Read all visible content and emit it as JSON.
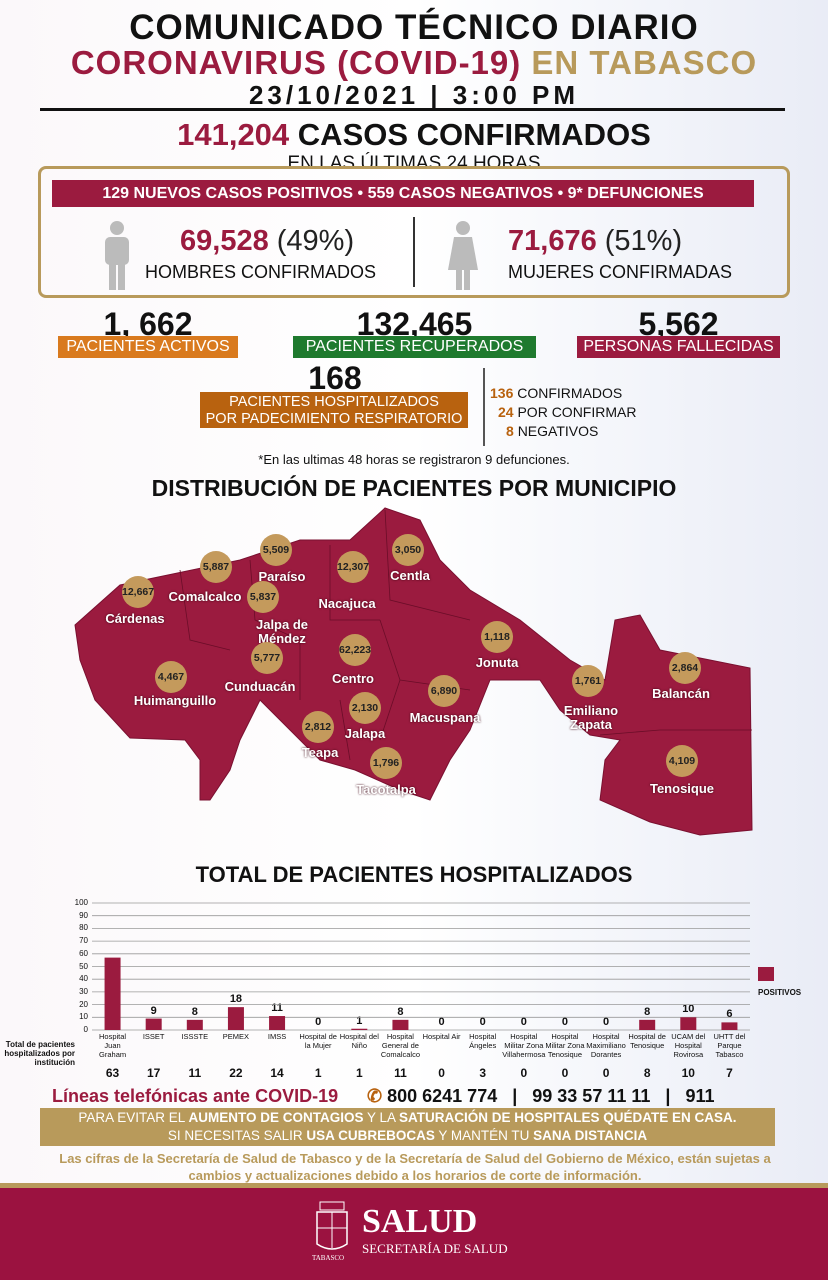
{
  "header": {
    "title": "COMUNICADO TÉCNICO DIARIO",
    "subtitle_red": "CORONAVIRUS (COVID-19)",
    "subtitle_gold": "EN TABASCO",
    "datetime": "23/10/2021 | 3:00 PM"
  },
  "confirmed": {
    "total": "141,204",
    "label": "CASOS CONFIRMADOS",
    "period": "EN LAS ÚLTIMAS 24 HORAS"
  },
  "last24": "129 NUEVOS CASOS POSITIVOS • 559 CASOS NEGATIVOS • 9* DEFUNCIONES",
  "men": {
    "count": "69,528",
    "pct": "(49%)",
    "label": "HOMBRES CONFIRMADOS"
  },
  "women": {
    "count": "71,676",
    "pct": "(51%)",
    "label": "MUJERES CONFIRMADAS"
  },
  "stats": {
    "active": {
      "value": "1, 662",
      "label": "PACIENTES ACTIVOS",
      "color": "#d97a1e"
    },
    "recovered": {
      "value": "132,465",
      "label": "PACIENTES RECUPERADOS",
      "color": "#1f7a2e"
    },
    "deceased": {
      "value": "5,562",
      "label": "PERSONAS FALLECIDAS",
      "color": "#9b1b3f"
    }
  },
  "hospitalized": {
    "value": "168",
    "label_1": "PACIENTES HOSPITALIZADOS",
    "label_2": "POR PADECIMIENTO RESPIRATORIO",
    "breakdown": [
      {
        "n": "136",
        "label": "CONFIRMADOS"
      },
      {
        "n": "24",
        "label": "POR CONFIRMAR"
      },
      {
        "n": "8",
        "label": "NEGATIVOS"
      }
    ]
  },
  "note": "*En las ultimas 48 horas se registraron 9 defunciones.",
  "map": {
    "title": "DISTRIBUCIÓN DE PACIENTES POR MUNICIPIO",
    "municipalities": [
      {
        "name": "Cárdenas",
        "cases": "12,667"
      },
      {
        "name": "Comalcalco",
        "cases": "5,887"
      },
      {
        "name": "Paraíso",
        "cases": "5,509"
      },
      {
        "name": "Jalpa de Méndez",
        "cases": "5,837"
      },
      {
        "name": "Nacajuca",
        "cases": "12,307"
      },
      {
        "name": "Centla",
        "cases": "3,050"
      },
      {
        "name": "Huimanguillo",
        "cases": "4,467"
      },
      {
        "name": "Cunduacán",
        "cases": "5,777"
      },
      {
        "name": "Centro",
        "cases": "62,223"
      },
      {
        "name": "Jonuta",
        "cases": "1,118"
      },
      {
        "name": "Jalapa",
        "cases": "2,130"
      },
      {
        "name": "Macuspana",
        "cases": "6,890"
      },
      {
        "name": "Teapa",
        "cases": "2,812"
      },
      {
        "name": "Tacotalpa",
        "cases": "1,796"
      },
      {
        "name": "Emiliano Zapata",
        "cases": "1,761"
      },
      {
        "name": "Balancán",
        "cases": "2,864"
      },
      {
        "name": "Tenosique",
        "cases": "4,109"
      }
    ]
  },
  "chart_title": "TOTAL DE PACIENTES HOSPITALIZADOS",
  "chart_data": {
    "type": "bar",
    "ylim": [
      0,
      100
    ],
    "yticks": [
      0,
      10,
      20,
      30,
      40,
      50,
      60,
      70,
      80,
      90,
      100
    ],
    "grid": true,
    "legend_position": "right",
    "categories": [
      "Hospital Juan Graham",
      "ISSET",
      "ISSSTE",
      "PEMEX",
      "IMSS",
      "Hospital de la Mujer",
      "Hospital del Niño",
      "Hospital General de Comalcalco",
      "Hospital Air",
      "Hospital Ángeles",
      "Hospital Militar Zona Villahermosa",
      "Hospital Militar Zona Tenosique",
      "Hospital Maximiliano Dorantes",
      "Hospital de Tenosique",
      "UCAM del Hospital Rovirosa",
      "UHTT del Parque Tabasco"
    ],
    "series": [
      {
        "name": "POSITIVOS",
        "color": "#9b1b3f",
        "values": [
          57,
          9,
          8,
          18,
          11,
          0,
          1,
          8,
          0,
          0,
          0,
          0,
          0,
          8,
          10,
          6
        ]
      }
    ],
    "totals_label": "Total de pacientes hospitalizados por institución",
    "totals": [
      63,
      17,
      11,
      22,
      14,
      1,
      1,
      11,
      0,
      3,
      0,
      0,
      0,
      8,
      10,
      7
    ]
  },
  "phones": {
    "label": "Líneas telefónicas ante COVID-19",
    "numbers": [
      "800 6241 774",
      "99 33 57 11 11",
      "911"
    ]
  },
  "advice": {
    "line1_a": "PARA EVITAR EL ",
    "line1_b": "AUMENTO DE CONTAGIOS",
    "line1_c": " Y LA ",
    "line1_d": "SATURACIÓN DE HOSPITALES QUÉDATE EN CASA.",
    "line2_a": "SI NECESITAS SALIR ",
    "line2_b": "USA CUBREBOCAS",
    "line2_c": " Y MANTÉN TU ",
    "line2_d": "SANA DISTANCIA"
  },
  "disclaimer": "Las cifras de la Secretaría de Salud de Tabasco y de la Secretaría de Salud del Gobierno de México, están sujetas a cambios y actualizaciones debido a los horarios de corte de información.",
  "footer": {
    "brand": "SALUD",
    "sub": "SECRETARÍA DE SALUD",
    "seal_text": "TABASCO"
  },
  "colors": {
    "primary": "#9b1b3f",
    "gold": "#b89a5b",
    "orange": "#b8620f"
  }
}
